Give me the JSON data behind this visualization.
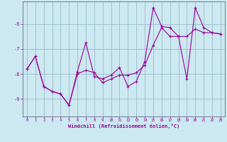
{
  "xlabel": "Windchill (Refroidissement éolien,°C)",
  "background_color": "#cce8f0",
  "line_color": "#990099",
  "grid_color": "#99bbcc",
  "spine_color": "#666688",
  "xlim": [
    -0.5,
    23.5
  ],
  "ylim": [
    -9.7,
    -5.1
  ],
  "yticks": [
    -9,
    -8,
    -7,
    -6
  ],
  "xticks": [
    0,
    1,
    2,
    3,
    4,
    5,
    6,
    7,
    8,
    9,
    10,
    11,
    12,
    13,
    14,
    15,
    16,
    17,
    18,
    19,
    20,
    21,
    22,
    23
  ],
  "series1_x": [
    0,
    1,
    2,
    3,
    4,
    5,
    6,
    7,
    8,
    9,
    10,
    11,
    12,
    13,
    14,
    15,
    16,
    17,
    18,
    19,
    20,
    21,
    22,
    23
  ],
  "series1_y": [
    -7.8,
    -7.3,
    -8.5,
    -8.7,
    -8.8,
    -9.25,
    -7.9,
    -6.75,
    -8.1,
    -8.2,
    -8.05,
    -7.75,
    -8.5,
    -8.3,
    -7.5,
    -5.35,
    -6.1,
    -6.15,
    -6.5,
    -8.2,
    -5.35,
    -6.15,
    -6.35,
    -6.4
  ],
  "series2_x": [
    0,
    1,
    2,
    3,
    4,
    5,
    6,
    7,
    8,
    9,
    10,
    11,
    12,
    13,
    14,
    15,
    16,
    17,
    18,
    19,
    20,
    21,
    22,
    23
  ],
  "series2_y": [
    -7.8,
    -7.3,
    -8.5,
    -8.7,
    -8.8,
    -9.25,
    -8.0,
    -7.85,
    -7.95,
    -8.35,
    -8.2,
    -8.05,
    -8.05,
    -7.95,
    -7.65,
    -6.85,
    -6.15,
    -6.5,
    -6.5,
    -6.5,
    -6.2,
    -6.35,
    -6.35,
    -6.4
  ]
}
